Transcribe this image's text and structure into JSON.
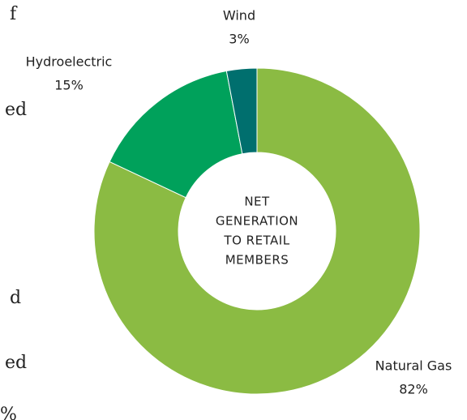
{
  "chart_data": {
    "type": "donut",
    "center_label": [
      "NET",
      "GENERATION",
      "TO RETAIL",
      "MEMBERS"
    ],
    "categories": [
      "Natural Gas",
      "Hydroelectric",
      "Wind"
    ],
    "values": [
      82,
      15,
      3
    ],
    "value_labels": [
      "82%",
      "15%",
      "3%"
    ],
    "colors": [
      "#8bbb43",
      "#00a15b",
      "#006f6e"
    ]
  },
  "side_text": [
    "f",
    "ed",
    "d",
    "ed",
    "%"
  ]
}
